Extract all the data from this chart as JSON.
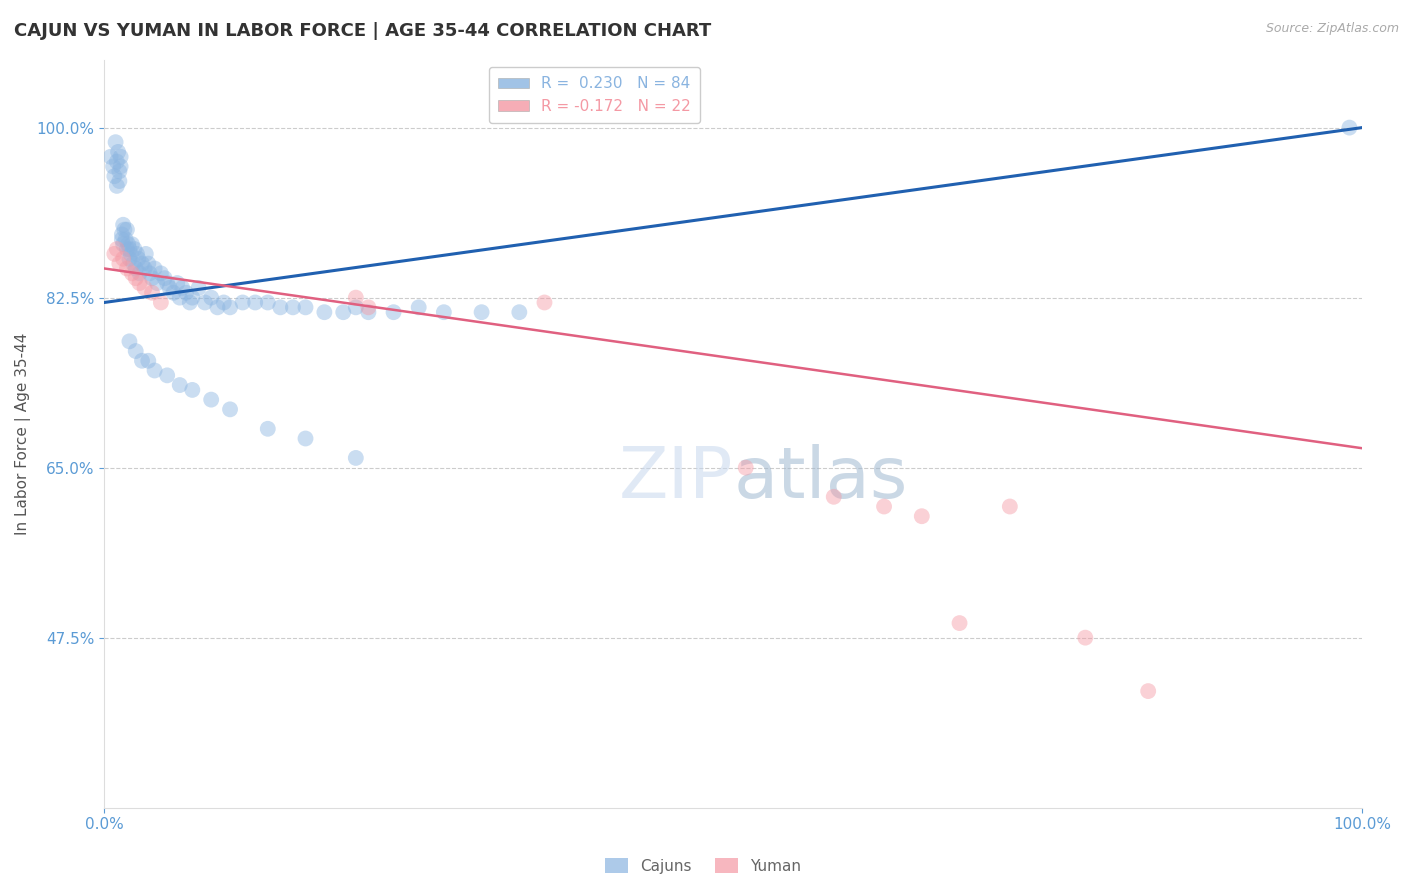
{
  "title": "CAJUN VS YUMAN IN LABOR FORCE | AGE 35-44 CORRELATION CHART",
  "source_text": "Source: ZipAtlas.com",
  "ylabel": "In Labor Force | Age 35-44",
  "x_min": 0.0,
  "x_max": 1.0,
  "y_min": 0.3,
  "y_max": 1.07,
  "yticks": [
    0.475,
    0.65,
    0.825,
    1.0
  ],
  "ytick_labels": [
    "47.5%",
    "65.0%",
    "82.5%",
    "100.0%"
  ],
  "xticks": [
    0.0,
    1.0
  ],
  "xtick_labels": [
    "0.0%",
    "100.0%"
  ],
  "blue_color": "#8ab4e0",
  "pink_color": "#f499a4",
  "trend_blue_color": "#2060b0",
  "trend_pink_color": "#e06080",
  "cajun_R": 0.23,
  "cajun_N": 84,
  "yuman_R": -0.172,
  "yuman_N": 22,
  "blue_trend_x": [
    0.0,
    1.0
  ],
  "blue_trend_y": [
    0.82,
    1.0
  ],
  "pink_trend_x": [
    0.0,
    1.0
  ],
  "pink_trend_y": [
    0.855,
    0.67
  ],
  "cajun_x": [
    0.005,
    0.007,
    0.008,
    0.009,
    0.01,
    0.01,
    0.011,
    0.012,
    0.012,
    0.013,
    0.013,
    0.014,
    0.014,
    0.015,
    0.015,
    0.016,
    0.017,
    0.018,
    0.018,
    0.019,
    0.02,
    0.02,
    0.021,
    0.022,
    0.023,
    0.024,
    0.025,
    0.026,
    0.027,
    0.028,
    0.03,
    0.032,
    0.033,
    0.035,
    0.036,
    0.038,
    0.04,
    0.042,
    0.045,
    0.048,
    0.05,
    0.052,
    0.055,
    0.058,
    0.06,
    0.062,
    0.065,
    0.068,
    0.07,
    0.075,
    0.08,
    0.085,
    0.09,
    0.095,
    0.1,
    0.11,
    0.12,
    0.13,
    0.14,
    0.15,
    0.16,
    0.175,
    0.19,
    0.2,
    0.21,
    0.23,
    0.25,
    0.27,
    0.3,
    0.33,
    0.02,
    0.025,
    0.03,
    0.035,
    0.04,
    0.05,
    0.06,
    0.07,
    0.085,
    0.1,
    0.13,
    0.16,
    0.2,
    0.99
  ],
  "cajun_y": [
    0.97,
    0.96,
    0.95,
    0.985,
    0.965,
    0.94,
    0.975,
    0.945,
    0.955,
    0.96,
    0.97,
    0.885,
    0.89,
    0.88,
    0.9,
    0.895,
    0.885,
    0.875,
    0.895,
    0.88,
    0.875,
    0.865,
    0.87,
    0.88,
    0.86,
    0.875,
    0.855,
    0.87,
    0.865,
    0.85,
    0.86,
    0.855,
    0.87,
    0.86,
    0.85,
    0.845,
    0.855,
    0.84,
    0.85,
    0.845,
    0.84,
    0.835,
    0.83,
    0.84,
    0.825,
    0.835,
    0.83,
    0.82,
    0.825,
    0.835,
    0.82,
    0.825,
    0.815,
    0.82,
    0.815,
    0.82,
    0.82,
    0.82,
    0.815,
    0.815,
    0.815,
    0.81,
    0.81,
    0.815,
    0.81,
    0.81,
    0.815,
    0.81,
    0.81,
    0.81,
    0.78,
    0.77,
    0.76,
    0.76,
    0.75,
    0.745,
    0.735,
    0.73,
    0.72,
    0.71,
    0.69,
    0.68,
    0.66,
    1.0
  ],
  "yuman_x": [
    0.008,
    0.01,
    0.012,
    0.015,
    0.018,
    0.022,
    0.025,
    0.028,
    0.032,
    0.038,
    0.045,
    0.2,
    0.21,
    0.35,
    0.51,
    0.58,
    0.62,
    0.65,
    0.68,
    0.72,
    0.78,
    0.83
  ],
  "yuman_y": [
    0.87,
    0.875,
    0.86,
    0.865,
    0.855,
    0.85,
    0.845,
    0.84,
    0.835,
    0.83,
    0.82,
    0.825,
    0.815,
    0.82,
    0.65,
    0.62,
    0.61,
    0.6,
    0.49,
    0.61,
    0.475,
    0.42
  ],
  "watermark_color": "#c8d8ee",
  "watermark_alpha": 0.55,
  "background_color": "#ffffff",
  "grid_color": "#cccccc",
  "tick_color": "#5b9bd5",
  "title_fontsize": 13,
  "axis_label_fontsize": 11,
  "tick_fontsize": 11,
  "marker_size": 130,
  "marker_alpha": 0.45
}
